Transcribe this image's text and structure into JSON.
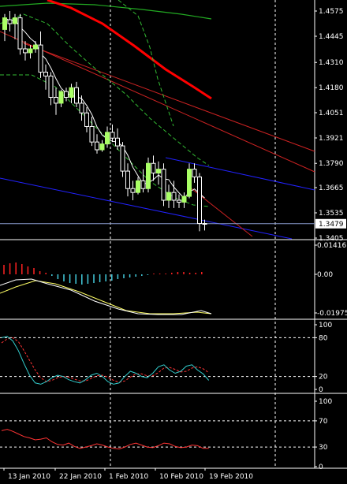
{
  "colors": {
    "background": "#000000",
    "grid": "#ffffff",
    "candle_up": "#aaff66",
    "candle_down": "#000000",
    "wick": "#ffffff",
    "ma_green": "#22aa22",
    "ma_red": "#ff0000",
    "trend_red": "#cc2222",
    "trend_blue": "#2222ff",
    "bollinger": "#33bb33",
    "ma_white": "#ffffff",
    "hist_pos": "#ff2222",
    "hist_neg": "#44ccdd",
    "signal_yellow": "#ffff66",
    "osc_cyan": "#33cccc",
    "osc_red": "#ff3333",
    "price_marker_bg": "#ffffff"
  },
  "main_panel": {
    "price_axis": [
      "1.4575",
      "1.4445",
      "1.4310",
      "1.4180",
      "1.4051",
      "1.3921",
      "1.3790",
      "1.3665",
      "1.3535",
      "1.3405"
    ],
    "current_price": "1.3479",
    "y_min": 1.3405,
    "y_max": 1.4575
  },
  "macd_panel": {
    "axis": [
      "0.01416",
      "0.00",
      "-0.01975"
    ]
  },
  "stoch_panel": {
    "axis": [
      "100",
      "80",
      "20",
      "0"
    ]
  },
  "rsi_panel": {
    "axis": [
      "100",
      "70",
      "30",
      "0"
    ]
  },
  "time_axis": [
    "13 Jan 2010",
    "22 Jan 2010",
    "1 Feb 2010",
    "10 Feb 2010",
    "19 Feb 2010"
  ],
  "chart_data": [
    {
      "type": "candlestick",
      "panel": "price",
      "note_y_range": [
        1.3405,
        1.4575
      ],
      "candles": [
        {
          "o": 1.448,
          "h": 1.456,
          "l": 1.442,
          "c": 1.454
        },
        {
          "o": 1.453,
          "h": 1.4575,
          "l": 1.447,
          "c": 1.451
        },
        {
          "o": 1.451,
          "h": 1.456,
          "l": 1.443,
          "c": 1.454
        },
        {
          "o": 1.454,
          "h": 1.456,
          "l": 1.435,
          "c": 1.438
        },
        {
          "o": 1.438,
          "h": 1.442,
          "l": 1.432,
          "c": 1.436
        },
        {
          "o": 1.436,
          "h": 1.44,
          "l": 1.433,
          "c": 1.438
        },
        {
          "o": 1.438,
          "h": 1.442,
          "l": 1.436,
          "c": 1.44
        },
        {
          "o": 1.44,
          "h": 1.447,
          "l": 1.423,
          "c": 1.426
        },
        {
          "o": 1.426,
          "h": 1.43,
          "l": 1.417,
          "c": 1.424
        },
        {
          "o": 1.424,
          "h": 1.426,
          "l": 1.409,
          "c": 1.413
        },
        {
          "o": 1.413,
          "h": 1.418,
          "l": 1.404,
          "c": 1.41
        },
        {
          "o": 1.41,
          "h": 1.417,
          "l": 1.408,
          "c": 1.416
        },
        {
          "o": 1.416,
          "h": 1.418,
          "l": 1.411,
          "c": 1.413
        },
        {
          "o": 1.413,
          "h": 1.42,
          "l": 1.41,
          "c": 1.418
        },
        {
          "o": 1.418,
          "h": 1.421,
          "l": 1.408,
          "c": 1.41
        },
        {
          "o": 1.41,
          "h": 1.414,
          "l": 1.401,
          "c": 1.405
        },
        {
          "o": 1.405,
          "h": 1.408,
          "l": 1.395,
          "c": 1.398
        },
        {
          "o": 1.398,
          "h": 1.403,
          "l": 1.388,
          "c": 1.39
        },
        {
          "o": 1.39,
          "h": 1.394,
          "l": 1.384,
          "c": 1.386
        },
        {
          "o": 1.386,
          "h": 1.391,
          "l": 1.385,
          "c": 1.389
        },
        {
          "o": 1.389,
          "h": 1.398,
          "l": 1.387,
          "c": 1.395
        },
        {
          "o": 1.395,
          "h": 1.399,
          "l": 1.39,
          "c": 1.392
        },
        {
          "o": 1.392,
          "h": 1.397,
          "l": 1.386,
          "c": 1.388
        },
        {
          "o": 1.388,
          "h": 1.39,
          "l": 1.372,
          "c": 1.375
        },
        {
          "o": 1.375,
          "h": 1.379,
          "l": 1.362,
          "c": 1.366
        },
        {
          "o": 1.366,
          "h": 1.37,
          "l": 1.36,
          "c": 1.364
        },
        {
          "o": 1.364,
          "h": 1.372,
          "l": 1.363,
          "c": 1.37
        },
        {
          "o": 1.37,
          "h": 1.376,
          "l": 1.364,
          "c": 1.366
        },
        {
          "o": 1.366,
          "h": 1.382,
          "l": 1.364,
          "c": 1.379
        },
        {
          "o": 1.379,
          "h": 1.383,
          "l": 1.37,
          "c": 1.374
        },
        {
          "o": 1.374,
          "h": 1.38,
          "l": 1.368,
          "c": 1.376
        },
        {
          "o": 1.376,
          "h": 1.379,
          "l": 1.357,
          "c": 1.36
        },
        {
          "o": 1.36,
          "h": 1.368,
          "l": 1.356,
          "c": 1.364
        },
        {
          "o": 1.364,
          "h": 1.37,
          "l": 1.356,
          "c": 1.36
        },
        {
          "o": 1.36,
          "h": 1.363,
          "l": 1.356,
          "c": 1.359
        },
        {
          "o": 1.359,
          "h": 1.364,
          "l": 1.356,
          "c": 1.362
        },
        {
          "o": 1.362,
          "h": 1.379,
          "l": 1.361,
          "c": 1.376
        },
        {
          "o": 1.376,
          "h": 1.379,
          "l": 1.369,
          "c": 1.372
        },
        {
          "o": 1.372,
          "h": 1.374,
          "l": 1.344,
          "c": 1.348
        },
        {
          "o": 1.348,
          "h": 1.35,
          "l": 1.3444,
          "c": 1.3479
        }
      ]
    }
  ]
}
